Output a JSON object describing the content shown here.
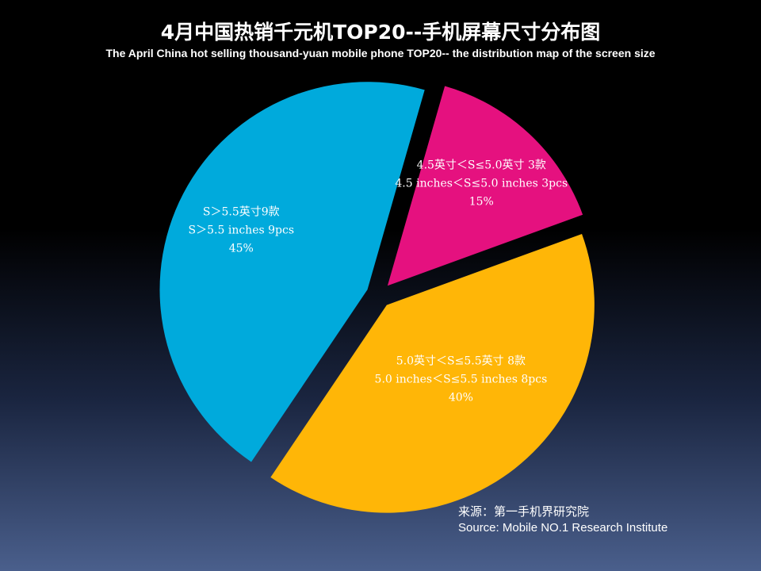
{
  "chart_data": {
    "type": "pie",
    "title": "4月中国热销千元机TOP20--手机屏幕尺寸分布图",
    "subtitle": "The  April  China hot selling thousand-yuan mobile phone TOP20-- the distribution map of the screen size",
    "slices": [
      {
        "label_cn": "4.5英寸＜S≤5.0英寸 3款",
        "label_en": "4.5 inches＜S≤5.0 inches 3pcs",
        "percent_label": "15%",
        "count": 3,
        "percent": 15,
        "color": "#e5117f"
      },
      {
        "label_cn": "5.0英寸＜S≤5.5英寸 8款",
        "label_en": "5.0 inches＜S≤5.5 inches 8pcs",
        "percent_label": "40%",
        "count": 8,
        "percent": 40,
        "color": "#ffb607"
      },
      {
        "label_cn": "S＞5.5英寸9款",
        "label_en": "S＞5.5 inches 9pcs",
        "percent_label": "45%",
        "count": 9,
        "percent": 45,
        "color": "#00aadc"
      }
    ]
  },
  "source": {
    "cn": "来源：第一手机界研究院",
    "en": "Source: Mobile NO.1 Research Institute"
  }
}
